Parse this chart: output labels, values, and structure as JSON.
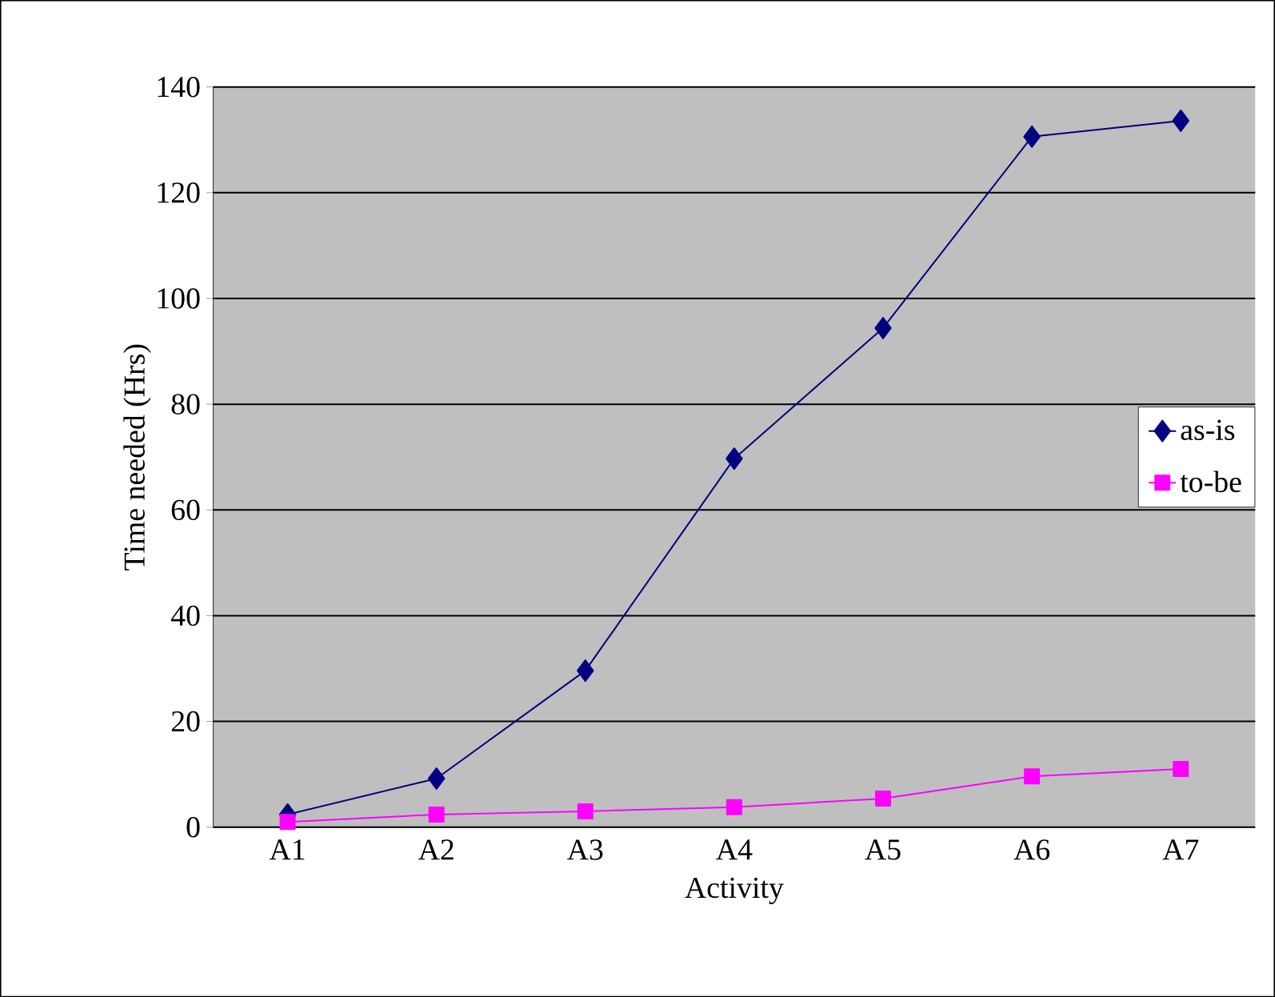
{
  "chart_data": {
    "type": "line",
    "xlabel": "Activity",
    "ylabel": "Time needed (Hrs)",
    "categories": [
      "A1",
      "A2",
      "A3",
      "A4",
      "A5",
      "A6",
      "A7"
    ],
    "series": [
      {
        "name": "as-is",
        "color": "#000080",
        "marker": "diamond",
        "values": [
          2.4,
          9.2,
          29.6,
          69.7,
          94.4,
          130.6,
          133.6
        ]
      },
      {
        "name": "to-be",
        "color": "#ff00ff",
        "marker": "square",
        "values": [
          1,
          2.4,
          3,
          3.8,
          5.4,
          9.6,
          11
        ]
      }
    ],
    "ylim": [
      0,
      140
    ],
    "yticks": [
      0,
      20,
      40,
      60,
      80,
      100,
      120,
      140
    ],
    "grid": "y",
    "legend": "right",
    "line_style": "solid"
  }
}
